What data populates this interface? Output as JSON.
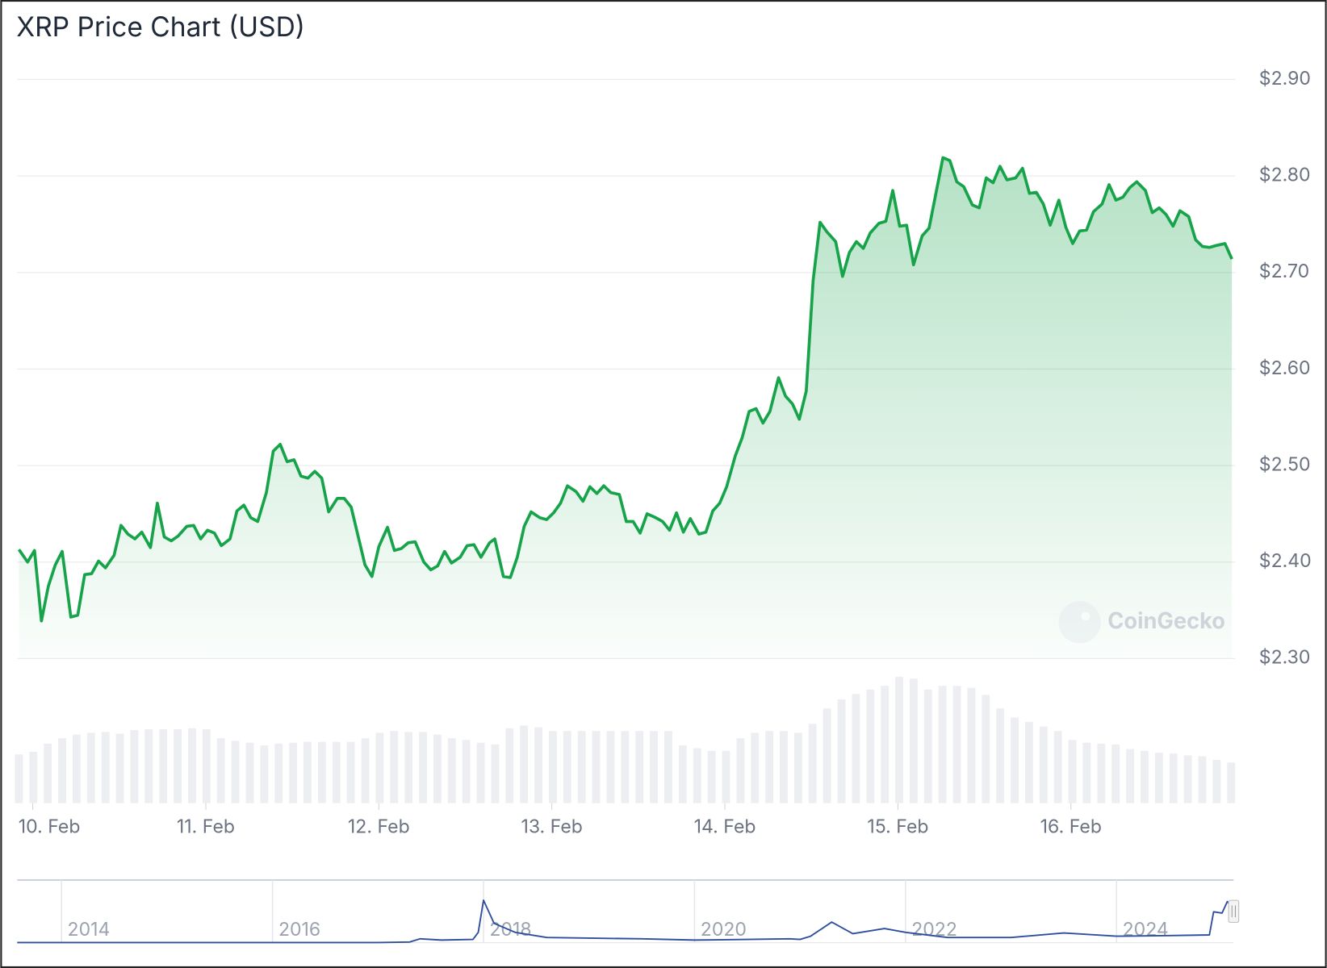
{
  "title": "XRP Price Chart (USD)",
  "watermark": "CoinGecko",
  "chart_data": [
    {
      "type": "line",
      "name": "price",
      "color": "#16a34a",
      "fill_area": true,
      "grid": true,
      "x": [
        9.92,
        9.97,
        10.01,
        10.05,
        10.09,
        10.13,
        10.17,
        10.22,
        10.26,
        10.3,
        10.34,
        10.38,
        10.42,
        10.47,
        10.51,
        10.55,
        10.59,
        10.63,
        10.68,
        10.72,
        10.76,
        10.8,
        10.84,
        10.89,
        10.93,
        10.97,
        11.01,
        11.05,
        11.09,
        11.14,
        11.18,
        11.22,
        11.26,
        11.3,
        11.35,
        11.39,
        11.43,
        11.47,
        11.51,
        11.55,
        11.59,
        11.63,
        11.67,
        11.71,
        11.76,
        11.8,
        11.84,
        11.88,
        11.92,
        11.96,
        12.0,
        12.05,
        12.09,
        12.13,
        12.17,
        12.21,
        12.26,
        12.3,
        12.34,
        12.38,
        12.42,
        12.47,
        12.51,
        12.55,
        12.59,
        12.64,
        12.67,
        12.72,
        12.76,
        12.8,
        12.84,
        12.88,
        12.93,
        12.97,
        13.01,
        13.05,
        13.09,
        13.14,
        13.18,
        13.22,
        13.26,
        13.3,
        13.34,
        13.39,
        13.43,
        13.47,
        13.51,
        13.55,
        13.6,
        13.64,
        13.68,
        13.72,
        13.76,
        13.8,
        13.85,
        13.89,
        13.93,
        13.97,
        14.01,
        14.06,
        14.1,
        14.14,
        14.18,
        14.22,
        14.26,
        14.31,
        14.35,
        14.39,
        14.43,
        14.47,
        14.51,
        14.55,
        14.59,
        14.64,
        14.68,
        14.72,
        14.76,
        14.8,
        14.84,
        14.89,
        14.93,
        14.97,
        15.01,
        15.05,
        15.09,
        15.14,
        15.18,
        15.26,
        15.3,
        15.34,
        15.38,
        15.43,
        15.47,
        15.51,
        15.55,
        15.59,
        15.63,
        15.68,
        15.72,
        15.76,
        15.8,
        15.84,
        15.88,
        15.93,
        15.97,
        16.01,
        16.05,
        16.09,
        16.13,
        16.18,
        16.22,
        16.26,
        16.3,
        16.34,
        16.38,
        16.43,
        16.47,
        16.51,
        16.55,
        16.59,
        16.63,
        16.68,
        16.72,
        16.76,
        16.8,
        16.84,
        16.89,
        16.93
      ],
      "values": [
        2.413,
        2.4,
        2.412,
        2.339,
        2.375,
        2.397,
        2.411,
        2.343,
        2.345,
        2.387,
        2.388,
        2.401,
        2.394,
        2.407,
        2.438,
        2.429,
        2.424,
        2.431,
        2.415,
        2.461,
        2.426,
        2.422,
        2.427,
        2.437,
        2.438,
        2.424,
        2.433,
        2.43,
        2.417,
        2.424,
        2.453,
        2.459,
        2.446,
        2.442,
        2.472,
        2.515,
        2.522,
        2.504,
        2.506,
        2.489,
        2.487,
        2.494,
        2.487,
        2.452,
        2.466,
        2.466,
        2.457,
        2.427,
        2.397,
        2.385,
        2.416,
        2.436,
        2.412,
        2.414,
        2.42,
        2.421,
        2.4,
        2.392,
        2.396,
        2.411,
        2.399,
        2.405,
        2.417,
        2.418,
        2.405,
        2.42,
        2.424,
        2.385,
        2.384,
        2.405,
        2.437,
        2.452,
        2.446,
        2.444,
        2.451,
        2.461,
        2.479,
        2.473,
        2.463,
        2.478,
        2.471,
        2.479,
        2.472,
        2.47,
        2.442,
        2.442,
        2.43,
        2.45,
        2.446,
        2.442,
        2.433,
        2.451,
        2.431,
        2.445,
        2.429,
        2.431,
        2.453,
        2.461,
        2.478,
        2.51,
        2.529,
        2.556,
        2.559,
        2.544,
        2.556,
        2.591,
        2.572,
        2.564,
        2.548,
        2.577,
        2.692,
        2.752,
        2.742,
        2.732,
        2.696,
        2.721,
        2.732,
        2.725,
        2.741,
        2.751,
        2.753,
        2.785,
        2.748,
        2.749,
        2.708,
        2.738,
        2.746,
        2.819,
        2.816,
        2.794,
        2.789,
        2.77,
        2.767,
        2.798,
        2.793,
        2.81,
        2.796,
        2.798,
        2.808,
        2.782,
        2.783,
        2.771,
        2.749,
        2.775,
        2.747,
        2.73,
        2.743,
        2.744,
        2.763,
        2.771,
        2.791,
        2.775,
        2.778,
        2.788,
        2.794,
        2.785,
        2.762,
        2.767,
        2.76,
        2.748,
        2.764,
        2.758,
        2.734,
        2.727,
        2.726,
        2.728,
        2.73,
        2.714
      ],
      "xlim": [
        9.91,
        16.95
      ],
      "xticks": [
        {
          "value": 10,
          "label": "10. Feb"
        },
        {
          "value": 11,
          "label": "11. Feb"
        },
        {
          "value": 12,
          "label": "12. Feb"
        },
        {
          "value": 13,
          "label": "13. Feb"
        },
        {
          "value": 14,
          "label": "14. Feb"
        },
        {
          "value": 15,
          "label": "15. Feb"
        },
        {
          "value": 16,
          "label": "16. Feb"
        }
      ],
      "ylim": [
        2.3,
        2.9
      ],
      "yticks": [
        {
          "value": 2.3,
          "label": "$2.30"
        },
        {
          "value": 2.4,
          "label": "$2.40"
        },
        {
          "value": 2.5,
          "label": "$2.50"
        },
        {
          "value": 2.6,
          "label": "$2.60"
        },
        {
          "value": 2.7,
          "label": "$2.70"
        },
        {
          "value": 2.8,
          "label": "$2.80"
        },
        {
          "value": 2.9,
          "label": "$2.90"
        }
      ]
    },
    {
      "type": "bar",
      "name": "volume",
      "color": "#eceef1",
      "ylim": [
        0,
        150
      ],
      "values": [
        54,
        57,
        66,
        72,
        76,
        78,
        79,
        77,
        81,
        82,
        82,
        82,
        83,
        82,
        72,
        69,
        67,
        64,
        66,
        67,
        68,
        68,
        68,
        68,
        72,
        78,
        80,
        79,
        79,
        76,
        72,
        70,
        67,
        65,
        83,
        86,
        84,
        80,
        80,
        80,
        80,
        80,
        80,
        80,
        80,
        80,
        64,
        61,
        58,
        58,
        72,
        78,
        80,
        80,
        78,
        88,
        105,
        115,
        121,
        126,
        130,
        140,
        138,
        126,
        130,
        130,
        128,
        120,
        105,
        95,
        90,
        85,
        80,
        70,
        67,
        66,
        65,
        60,
        58,
        56,
        55,
        53,
        52,
        48,
        45
      ]
    },
    {
      "type": "line",
      "name": "navigator",
      "color": "#2f4f9e",
      "x": [
        2013.58,
        2017.0,
        2017.3,
        2017.4,
        2017.6,
        2017.9,
        2017.95,
        2018.0,
        2018.1,
        2018.3,
        2018.6,
        2019.0,
        2019.5,
        2020.0,
        2020.5,
        2020.9,
        2021.0,
        2021.1,
        2021.3,
        2021.5,
        2021.8,
        2022.0,
        2022.4,
        2023.0,
        2023.5,
        2024.0,
        2024.5,
        2024.88,
        2024.92,
        2025.0,
        2025.05,
        2025.1
      ],
      "values": [
        0.005,
        0.006,
        0.05,
        0.3,
        0.2,
        0.25,
        0.8,
        3.3,
        1.5,
        0.8,
        0.4,
        0.35,
        0.3,
        0.2,
        0.25,
        0.3,
        0.25,
        0.5,
        1.6,
        0.7,
        1.1,
        0.8,
        0.4,
        0.4,
        0.75,
        0.5,
        0.55,
        0.6,
        2.4,
        2.3,
        3.2,
        2.7
      ],
      "xlim": [
        2013.58,
        2025.11
      ],
      "ylim": [
        0,
        4.8
      ],
      "xticks": [
        2014,
        2016,
        2018,
        2020,
        2022,
        2024
      ]
    }
  ]
}
